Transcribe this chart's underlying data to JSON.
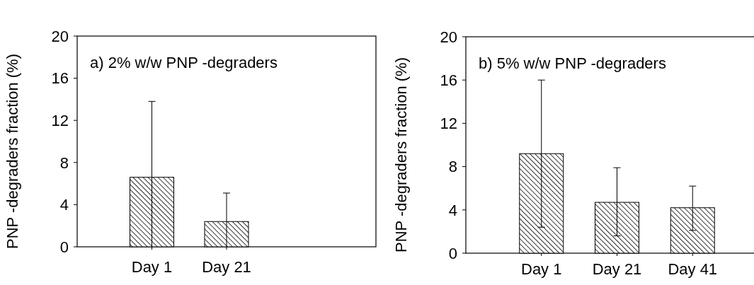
{
  "chart_data": [
    {
      "type": "bar",
      "title": "a) 2% w/w PNP -degraders",
      "ylabel": "PNP -degraders fraction (%)",
      "categories": [
        "Day 1",
        "Day 21"
      ],
      "values": [
        6.6,
        2.4
      ],
      "errors": [
        [
          0,
          13.8
        ],
        [
          0,
          5.1
        ]
      ],
      "color": "#000000",
      "ylim": [
        0,
        20
      ],
      "yticks": [
        0,
        4,
        8,
        12,
        16,
        20
      ],
      "grid": false
    },
    {
      "type": "bar",
      "title": "b) 5% w/w PNP -degraders",
      "ylabel": "PNP -degraders fraction (%)",
      "categories": [
        "Day 1",
        "Day 21",
        "Day 41"
      ],
      "values": [
        9.2,
        4.7,
        4.2
      ],
      "errors": [
        [
          2.4,
          16
        ],
        [
          1.6,
          7.9
        ],
        [
          2.1,
          6.2
        ]
      ],
      "color": "#000000",
      "ylim": [
        0,
        20
      ],
      "yticks": [
        0,
        4,
        8,
        12,
        16,
        20
      ],
      "grid": false
    }
  ]
}
